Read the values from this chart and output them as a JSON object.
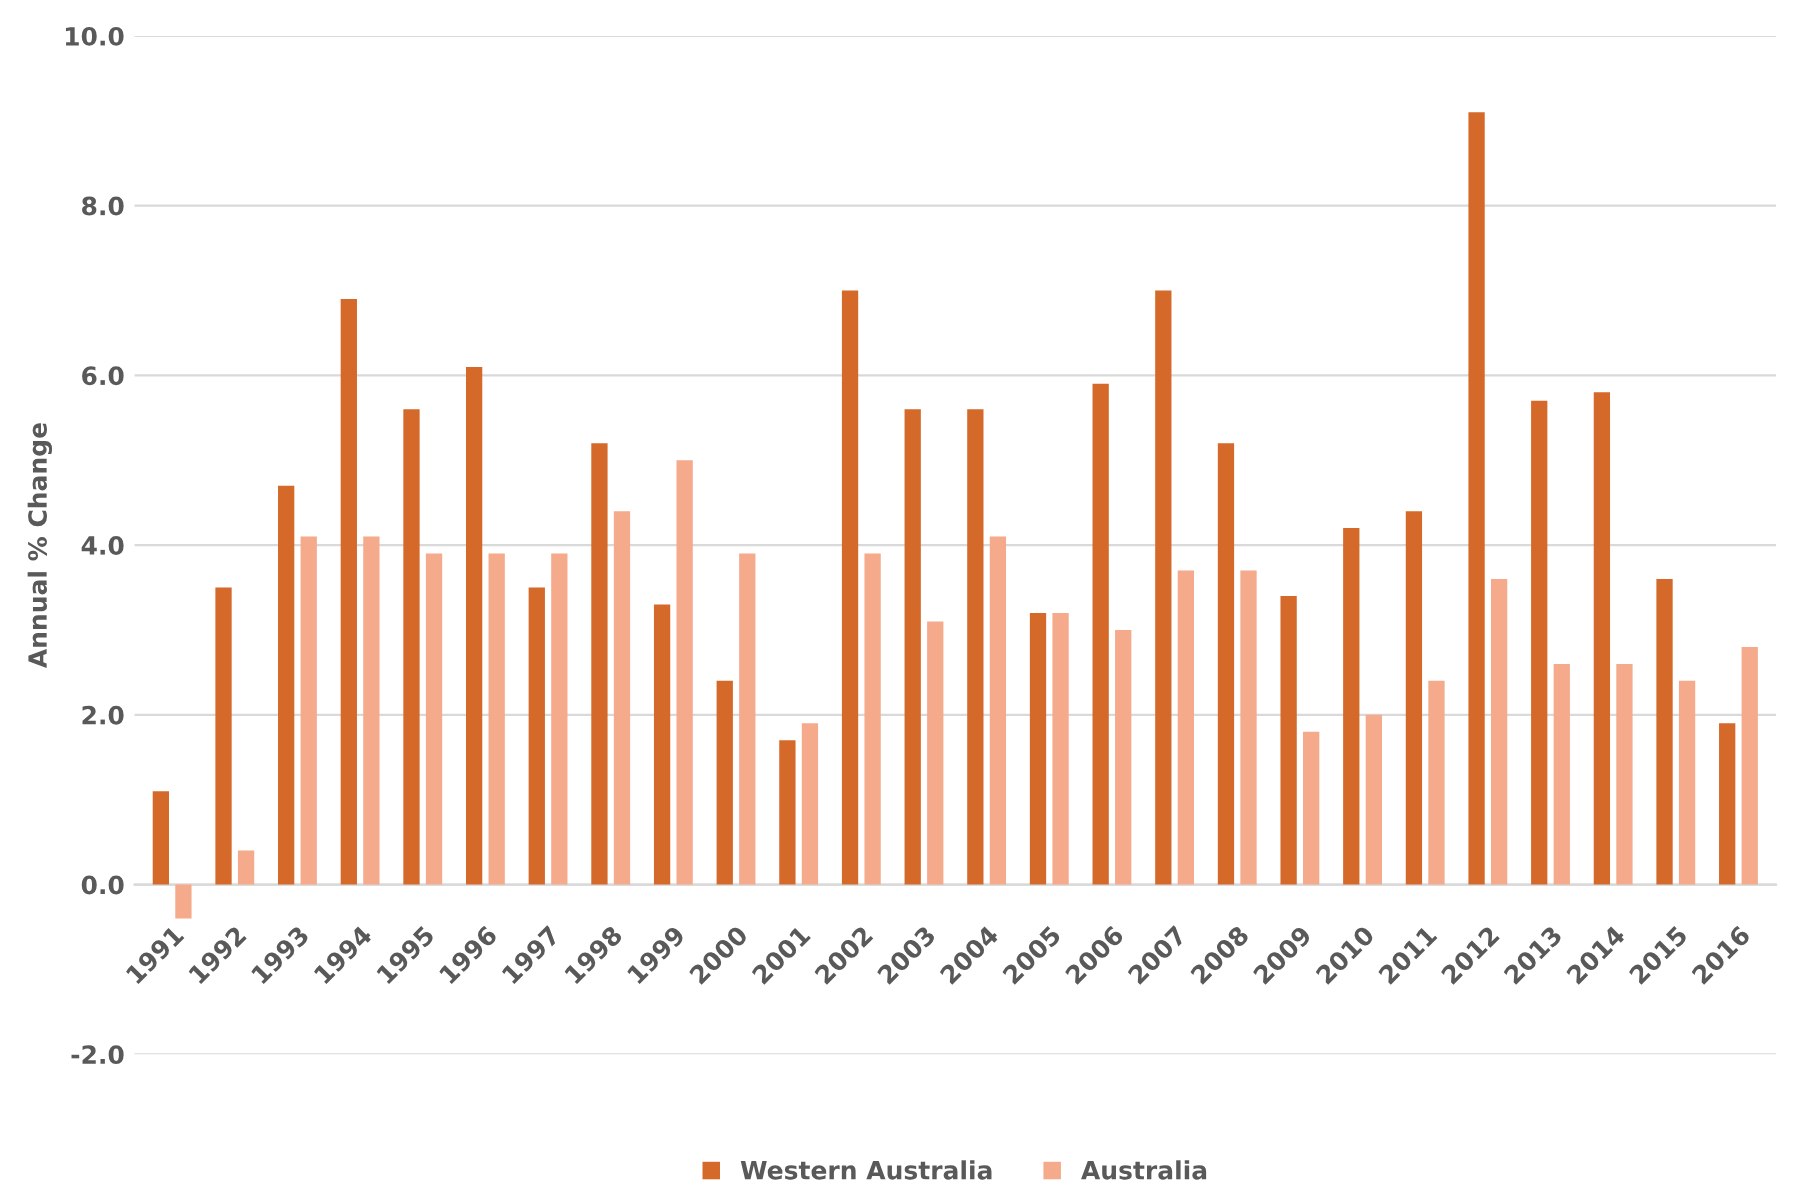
{
  "chart_data": {
    "type": "bar",
    "ylabel": "Annual % Change",
    "categories": [
      "1991",
      "1992",
      "1993",
      "1994",
      "1995",
      "1996",
      "1997",
      "1998",
      "1999",
      "2000",
      "2001",
      "2002",
      "2003",
      "2004",
      "2005",
      "2006",
      "2007",
      "2008",
      "2009",
      "2010",
      "2011",
      "2012",
      "2013",
      "2014",
      "2015",
      "2016"
    ],
    "series": [
      {
        "name": "Western Australia",
        "color": "#d4692a",
        "values": [
          1.1,
          3.5,
          4.7,
          6.9,
          5.6,
          6.1,
          3.5,
          5.2,
          3.3,
          2.4,
          1.7,
          7.0,
          5.6,
          5.6,
          3.2,
          5.9,
          7.0,
          5.2,
          3.4,
          4.2,
          4.4,
          9.1,
          5.7,
          5.8,
          3.6,
          1.9
        ]
      },
      {
        "name": "Australia",
        "color": "#f4aa8b",
        "values": [
          -0.4,
          0.4,
          4.1,
          4.1,
          3.9,
          3.9,
          3.9,
          4.4,
          5.0,
          3.9,
          1.9,
          3.9,
          3.1,
          4.1,
          3.2,
          3.0,
          3.7,
          3.7,
          1.8,
          2.0,
          2.4,
          3.6,
          2.6,
          2.6,
          2.4,
          2.8
        ]
      }
    ],
    "ylim": [
      -2,
      10
    ],
    "yticks": [
      {
        "value": -2,
        "label": "-2.0"
      },
      {
        "value": 0,
        "label": "0.0"
      },
      {
        "value": 2,
        "label": "2.0"
      },
      {
        "value": 4,
        "label": "4.0"
      },
      {
        "value": 6,
        "label": "6.0"
      },
      {
        "value": 8,
        "label": "8.0"
      },
      {
        "value": 10,
        "label": "10.0"
      }
    ],
    "grid": "y",
    "legend": "bottom"
  }
}
